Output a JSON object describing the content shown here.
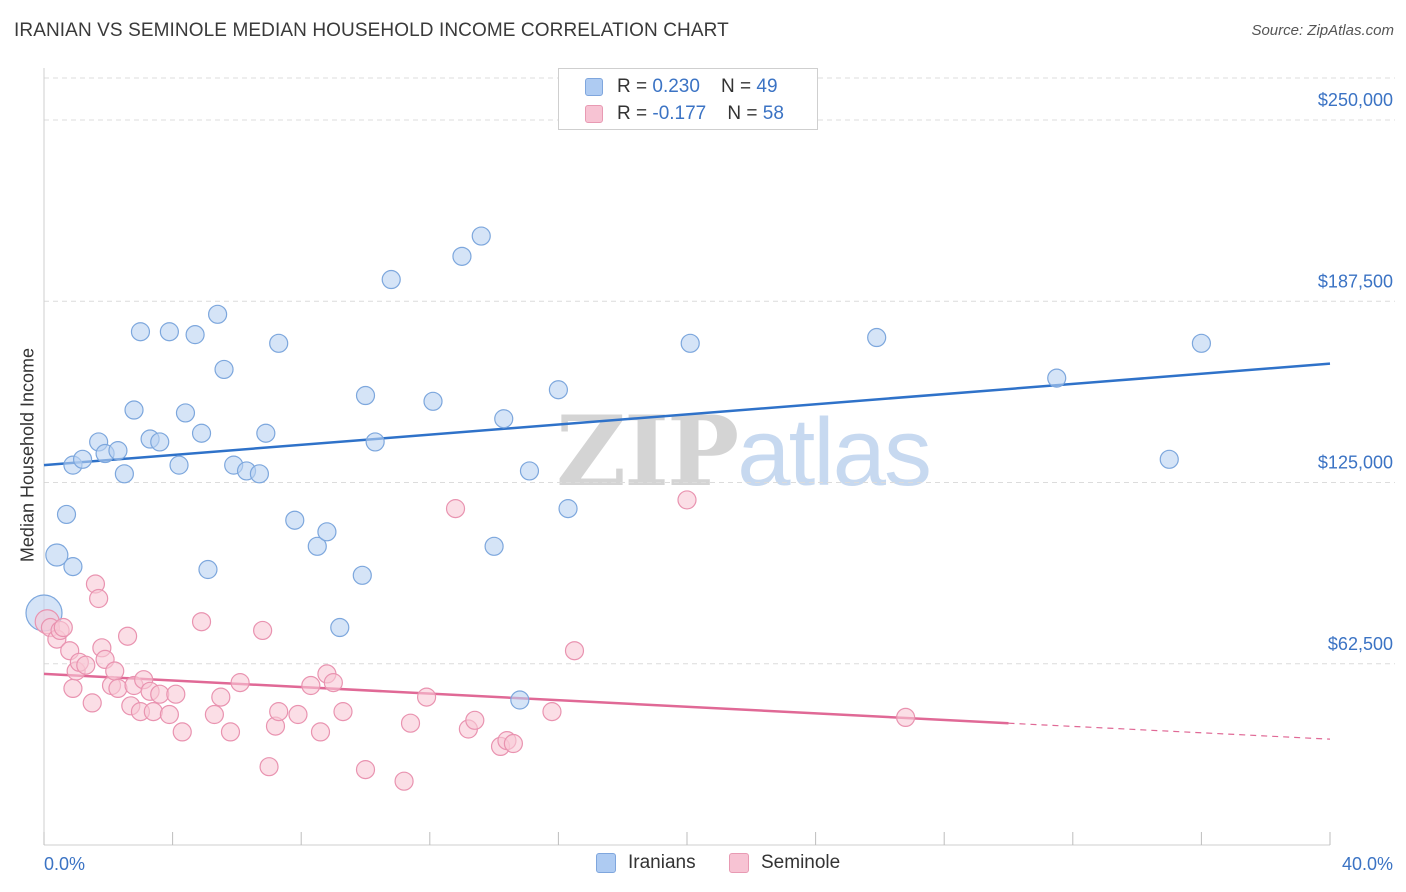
{
  "title": "IRANIAN VS SEMINOLE MEDIAN HOUSEHOLD INCOME CORRELATION CHART",
  "source": "Source: ZipAtlas.com",
  "watermark": {
    "zip": "ZIP",
    "atlas": "atlas"
  },
  "legend": {
    "rows": [
      {
        "r_label": "R = ",
        "r_value": "0.230",
        "n_label": "N = ",
        "n_value": "49",
        "color": "#aecbf2",
        "border": "#7fa6dd"
      },
      {
        "r_label": "R = ",
        "r_value": "-0.177",
        "n_label": "N = ",
        "n_value": "58",
        "color": "#f7c3d3",
        "border": "#e89ab3"
      }
    ]
  },
  "colors": {
    "blue_fill": "#b9d2f2",
    "blue_stroke": "#7da7dd",
    "blue_line": "#2f72c9",
    "pink_fill": "#f8c8d6",
    "pink_stroke": "#e993b0",
    "pink_line": "#e06996",
    "grid": "#dcdcdc",
    "axis_text": "#3b73c4"
  },
  "chart_data": {
    "type": "scatter",
    "title": "IRANIAN VS SEMINOLE MEDIAN HOUSEHOLD INCOME CORRELATION CHART",
    "xlabel": "",
    "ylabel": "Median Household Income",
    "xlim": [
      0,
      40
    ],
    "ylim": [
      0,
      250000
    ],
    "x_tick_labels": [
      "0.0%",
      "40.0%"
    ],
    "y_ticks": [
      62500,
      125000,
      187500,
      250000
    ],
    "y_tick_labels": [
      "$62,500",
      "$125,000",
      "$187,500",
      "$250,000"
    ],
    "grid": true,
    "legend_position": "top-center",
    "series": [
      {
        "name": "Iranians",
        "r": 0.23,
        "n": 49,
        "trend": {
          "x0": 0,
          "y0": 131000,
          "x1": 40,
          "y1": 166000
        },
        "points": [
          [
            0.0,
            80000
          ],
          [
            0.4,
            100000
          ],
          [
            0.7,
            114000
          ],
          [
            0.9,
            96000
          ],
          [
            0.9,
            131000
          ],
          [
            1.2,
            133000
          ],
          [
            1.7,
            139000
          ],
          [
            1.9,
            135000
          ],
          [
            2.3,
            136000
          ],
          [
            2.5,
            128000
          ],
          [
            2.8,
            150000
          ],
          [
            3.0,
            177000
          ],
          [
            3.3,
            140000
          ],
          [
            3.6,
            139000
          ],
          [
            3.9,
            177000
          ],
          [
            4.2,
            131000
          ],
          [
            4.4,
            149000
          ],
          [
            4.7,
            176000
          ],
          [
            4.9,
            142000
          ],
          [
            5.1,
            95000
          ],
          [
            5.4,
            183000
          ],
          [
            5.6,
            164000
          ],
          [
            5.9,
            131000
          ],
          [
            6.3,
            129000
          ],
          [
            6.7,
            128000
          ],
          [
            6.9,
            142000
          ],
          [
            7.3,
            173000
          ],
          [
            7.8,
            112000
          ],
          [
            8.5,
            103000
          ],
          [
            8.8,
            108000
          ],
          [
            9.2,
            75000
          ],
          [
            9.9,
            93000
          ],
          [
            10.0,
            155000
          ],
          [
            10.3,
            139000
          ],
          [
            10.8,
            195000
          ],
          [
            12.1,
            153000
          ],
          [
            13.0,
            203000
          ],
          [
            13.6,
            210000
          ],
          [
            14.0,
            103000
          ],
          [
            14.3,
            147000
          ],
          [
            14.8,
            50000
          ],
          [
            15.1,
            129000
          ],
          [
            16.0,
            157000
          ],
          [
            16.3,
            116000
          ],
          [
            20.1,
            173000
          ],
          [
            25.9,
            175000
          ],
          [
            31.5,
            161000
          ],
          [
            35.0,
            133000
          ],
          [
            36.0,
            173000
          ]
        ]
      },
      {
        "name": "Seminole",
        "r": -0.177,
        "n": 58,
        "trend": {
          "x0": 0,
          "y0": 59000,
          "x1": 30.0,
          "y1": 42000
        },
        "trend_dashed": {
          "x0": 30.0,
          "y0": 42000,
          "x1": 40,
          "y1": 36500
        },
        "points": [
          [
            0.1,
            77000
          ],
          [
            0.2,
            75000
          ],
          [
            0.4,
            71000
          ],
          [
            0.5,
            74000
          ],
          [
            0.6,
            75000
          ],
          [
            0.8,
            67000
          ],
          [
            0.9,
            54000
          ],
          [
            1.0,
            60000
          ],
          [
            1.1,
            63000
          ],
          [
            1.3,
            62000
          ],
          [
            1.5,
            49000
          ],
          [
            1.6,
            90000
          ],
          [
            1.7,
            85000
          ],
          [
            1.8,
            68000
          ],
          [
            1.9,
            64000
          ],
          [
            2.1,
            55000
          ],
          [
            2.2,
            60000
          ],
          [
            2.3,
            54000
          ],
          [
            2.6,
            72000
          ],
          [
            2.7,
            48000
          ],
          [
            2.8,
            55000
          ],
          [
            3.0,
            46000
          ],
          [
            3.1,
            57000
          ],
          [
            3.3,
            53000
          ],
          [
            3.4,
            46000
          ],
          [
            3.6,
            52000
          ],
          [
            3.9,
            45000
          ],
          [
            4.1,
            52000
          ],
          [
            4.3,
            39000
          ],
          [
            4.9,
            77000
          ],
          [
            5.3,
            45000
          ],
          [
            5.5,
            51000
          ],
          [
            5.8,
            39000
          ],
          [
            6.1,
            56000
          ],
          [
            6.8,
            74000
          ],
          [
            7.0,
            27000
          ],
          [
            7.2,
            41000
          ],
          [
            7.3,
            46000
          ],
          [
            7.9,
            45000
          ],
          [
            8.3,
            55000
          ],
          [
            8.6,
            39000
          ],
          [
            8.8,
            59000
          ],
          [
            9.0,
            56000
          ],
          [
            9.3,
            46000
          ],
          [
            10.0,
            26000
          ],
          [
            11.2,
            22000
          ],
          [
            11.4,
            42000
          ],
          [
            11.9,
            51000
          ],
          [
            12.8,
            116000
          ],
          [
            13.2,
            40000
          ],
          [
            13.4,
            43000
          ],
          [
            14.2,
            34000
          ],
          [
            14.4,
            36000
          ],
          [
            14.6,
            35000
          ],
          [
            15.8,
            46000
          ],
          [
            16.5,
            67000
          ],
          [
            20.0,
            119000
          ],
          [
            26.8,
            44000
          ]
        ]
      }
    ]
  }
}
